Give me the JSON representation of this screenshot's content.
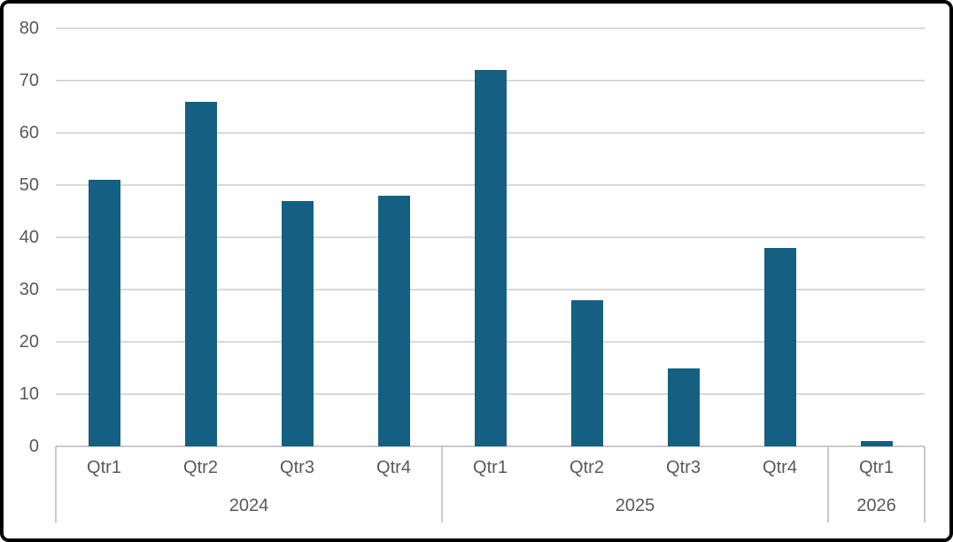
{
  "window": {
    "background_color": "#ffffff",
    "frame_border_color": "#000000"
  },
  "chart_data": {
    "type": "bar",
    "title": "",
    "xlabel": "",
    "ylabel": "",
    "legend": "none",
    "grid": true,
    "ylim": [
      0,
      80
    ],
    "yticks": [
      0,
      10,
      20,
      30,
      40,
      50,
      60,
      70,
      80
    ],
    "bar_color": "#156082",
    "axis_text_color": "#595959",
    "gridline_color": "#d9d9d9",
    "axis_line_color": "#c9c9c9",
    "groups": [
      {
        "year": "2024",
        "categories": [
          "Qtr1",
          "Qtr2",
          "Qtr3",
          "Qtr4"
        ],
        "values": [
          51,
          66,
          47,
          48
        ]
      },
      {
        "year": "2025",
        "categories": [
          "Qtr1",
          "Qtr2",
          "Qtr3",
          "Qtr4"
        ],
        "values": [
          72,
          28,
          15,
          38
        ]
      },
      {
        "year": "2026",
        "categories": [
          "Qtr1"
        ],
        "values": [
          1
        ]
      }
    ]
  }
}
